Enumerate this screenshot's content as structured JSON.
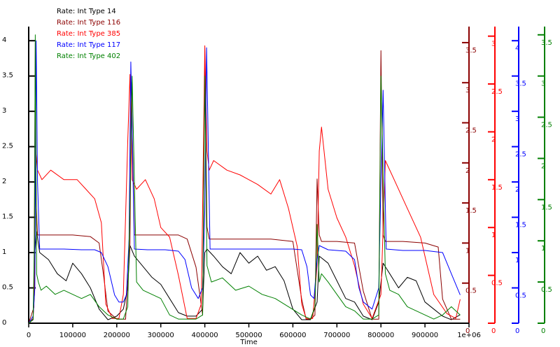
{
  "chart_data": {
    "type": "line",
    "xlabel": "Time",
    "x_ticks": [
      {
        "value": 0,
        "label": "0"
      },
      {
        "value": 100000,
        "label": "100000"
      },
      {
        "value": 200000,
        "label": "200000"
      },
      {
        "value": 300000,
        "label": "300000"
      },
      {
        "value": 400000,
        "label": "400000"
      },
      {
        "value": 500000,
        "label": "500000"
      },
      {
        "value": 600000,
        "label": "600000"
      },
      {
        "value": 700000,
        "label": "700000"
      },
      {
        "value": 800000,
        "label": "800000"
      },
      {
        "value": 900000,
        "label": "900000"
      },
      {
        "value": 1000000,
        "label": "1e+06"
      }
    ],
    "xlim": [
      0,
      1000000
    ],
    "legend_position": "top-left",
    "grid": false,
    "axes": [
      {
        "id": "a14",
        "side": "left",
        "color": "#000000",
        "ylim": [
          0,
          4.2
        ],
        "ticks": [
          {
            "v": 0,
            "l": "0"
          },
          {
            "v": 0.5,
            "l": "0.5"
          },
          {
            "v": 1,
            "l": "1"
          },
          {
            "v": 1.5,
            "l": "1.5"
          },
          {
            "v": 2,
            "l": "2"
          },
          {
            "v": 2.5,
            "l": "2.5"
          },
          {
            "v": 3,
            "l": "3"
          },
          {
            "v": 3.5,
            "l": "3.5"
          },
          {
            "v": 4,
            "l": "4"
          }
        ]
      },
      {
        "id": "a116",
        "side": "right",
        "color": "#8b0000",
        "ylim": [
          0,
          3.7
        ],
        "ticks": [
          {
            "v": 0,
            "l": "0"
          },
          {
            "v": 0.5,
            "l": "0.5"
          },
          {
            "v": 1,
            "l": "1"
          },
          {
            "v": 1.5,
            "l": "1.5"
          },
          {
            "v": 2,
            "l": "2"
          },
          {
            "v": 2.5,
            "l": "2.5"
          },
          {
            "v": 3,
            "l": "3"
          },
          {
            "v": 3.5,
            "l": "3.5"
          }
        ]
      },
      {
        "id": "a385",
        "side": "right",
        "color": "#ff0000",
        "ylim": [
          0,
          3.1
        ],
        "ticks": [
          {
            "v": 0,
            "l": "0"
          },
          {
            "v": 0.5,
            "l": "0.5"
          },
          {
            "v": 1,
            "l": "1"
          },
          {
            "v": 1.5,
            "l": "1.5"
          },
          {
            "v": 2,
            "l": "2"
          },
          {
            "v": 2.5,
            "l": "2.5"
          },
          {
            "v": 3,
            "l": "3"
          }
        ]
      },
      {
        "id": "a117",
        "side": "right",
        "color": "#0000ff",
        "ylim": [
          0,
          4.2
        ],
        "ticks": [
          {
            "v": 0,
            "l": "0"
          },
          {
            "v": 0.5,
            "l": "0.5"
          },
          {
            "v": 1,
            "l": "1"
          },
          {
            "v": 1.5,
            "l": "1.5"
          },
          {
            "v": 2,
            "l": "2"
          },
          {
            "v": 2.5,
            "l": "2.5"
          },
          {
            "v": 3,
            "l": "3"
          },
          {
            "v": 3.5,
            "l": "3.5"
          },
          {
            "v": 4,
            "l": "4"
          }
        ]
      },
      {
        "id": "a402",
        "side": "right",
        "color": "#008000",
        "ylim": [
          0,
          3.6
        ],
        "ticks": [
          {
            "v": 0,
            "l": "0"
          },
          {
            "v": 0.5,
            "l": "0.5"
          },
          {
            "v": 1,
            "l": "1"
          },
          {
            "v": 1.5,
            "l": "1.5"
          },
          {
            "v": 2,
            "l": "2"
          },
          {
            "v": 2.5,
            "l": "2.5"
          },
          {
            "v": 3,
            "l": "3"
          },
          {
            "v": 3.5,
            "l": "3.5"
          }
        ]
      }
    ],
    "series": [
      {
        "name": "Rate: Int Type 14",
        "color": "#000000",
        "axis": "a14",
        "x": [
          0,
          10000,
          14000,
          18000,
          25000,
          45000,
          65000,
          85000,
          100000,
          120000,
          140000,
          160000,
          180000,
          200000,
          215000,
          225000,
          230000,
          240000,
          260000,
          280000,
          300000,
          320000,
          340000,
          360000,
          380000,
          395000,
          400000,
          405000,
          420000,
          440000,
          460000,
          480000,
          500000,
          520000,
          540000,
          560000,
          580000,
          600000,
          620000,
          640000,
          655000,
          660000,
          680000,
          700000,
          720000,
          740000,
          760000,
          780000,
          795000,
          805000,
          820000,
          840000,
          860000,
          880000,
          900000,
          920000,
          940000,
          960000,
          980000
        ],
        "y": [
          0,
          0.05,
          1.0,
          1.3,
          1.0,
          0.9,
          0.7,
          0.6,
          0.85,
          0.7,
          0.5,
          0.2,
          0.05,
          0.1,
          0.2,
          0.5,
          1.1,
          0.95,
          0.8,
          0.65,
          0.55,
          0.35,
          0.15,
          0.1,
          0.1,
          0.2,
          1.0,
          1.05,
          0.95,
          0.8,
          0.7,
          1.0,
          0.85,
          0.95,
          0.75,
          0.8,
          0.6,
          0.2,
          0.05,
          0.05,
          0.3,
          0.95,
          0.85,
          0.6,
          0.35,
          0.3,
          0.1,
          0.05,
          0.3,
          0.85,
          0.7,
          0.5,
          0.65,
          0.6,
          0.3,
          0.2,
          0.1,
          0.05,
          0.12
        ]
      },
      {
        "name": "Rate: Int Type 116",
        "color": "#8b0000",
        "axis": "a116",
        "x": [
          0,
          12000,
          15000,
          17000,
          20000,
          30000,
          60000,
          100000,
          140000,
          160000,
          170000,
          180000,
          200000,
          220000,
          230000,
          233000,
          240000,
          260000,
          300000,
          340000,
          360000,
          380000,
          395000,
          400000,
          405000,
          410000,
          450000,
          500000,
          550000,
          600000,
          620000,
          630000,
          640000,
          650000,
          655000,
          660000,
          665000,
          700000,
          740000,
          760000,
          780000,
          795000,
          800000,
          805000,
          810000,
          850000,
          900000,
          930000,
          940000,
          960000,
          980000
        ],
        "y": [
          0,
          0.2,
          3.5,
          1.5,
          1.1,
          1.1,
          1.1,
          1.1,
          1.08,
          1.0,
          0.6,
          0.15,
          0.05,
          0.05,
          1.0,
          3.0,
          1.1,
          1.1,
          1.1,
          1.1,
          1.05,
          0.7,
          0.1,
          3.3,
          1.2,
          1.05,
          1.05,
          1.05,
          1.05,
          1.02,
          0.3,
          0.05,
          0.05,
          0.1,
          1.8,
          1.1,
          1.02,
          1.02,
          1.0,
          0.4,
          0.05,
          0.05,
          3.4,
          1.1,
          1.02,
          1.02,
          1.0,
          0.95,
          0.3,
          0.05,
          0.05
        ]
      },
      {
        "name": "Rate: Int Type 385",
        "color": "#ff0000",
        "axis": "a385",
        "x": [
          0,
          10000,
          13000,
          16000,
          20000,
          30000,
          50000,
          80000,
          110000,
          130000,
          150000,
          165000,
          175000,
          190000,
          205000,
          215000,
          225000,
          230000,
          235000,
          245000,
          265000,
          285000,
          300000,
          320000,
          340000,
          360000,
          380000,
          392000,
          400000,
          405000,
          410000,
          420000,
          450000,
          480000,
          520000,
          550000,
          570000,
          590000,
          610000,
          620000,
          630000,
          645000,
          655000,
          660000,
          665000,
          680000,
          700000,
          720000,
          740000,
          760000,
          780000,
          800000,
          810000,
          830000,
          860000,
          890000,
          920000,
          950000,
          970000,
          980000
        ],
        "y": [
          0,
          0.05,
          0.3,
          1.8,
          1.6,
          1.5,
          1.6,
          1.5,
          1.5,
          1.4,
          1.3,
          1.05,
          0.2,
          0.05,
          0.05,
          0.3,
          1.9,
          2.6,
          1.5,
          1.4,
          1.5,
          1.3,
          1.0,
          0.9,
          0.5,
          0.05,
          0.05,
          0.2,
          2.9,
          1.8,
          1.6,
          1.7,
          1.6,
          1.55,
          1.45,
          1.35,
          1.5,
          1.2,
          0.8,
          0.2,
          0.05,
          0.05,
          0.6,
          1.8,
          2.05,
          1.4,
          1.1,
          0.9,
          0.6,
          0.2,
          0.05,
          0.3,
          1.7,
          1.5,
          1.2,
          0.9,
          0.3,
          0.1,
          0.05,
          0.25
        ]
      },
      {
        "name": "Rate: Int Type 117",
        "color": "#0000ff",
        "axis": "a117",
        "x": [
          0,
          10000,
          14000,
          17000,
          20000,
          25000,
          40000,
          80000,
          120000,
          150000,
          165000,
          180000,
          195000,
          205000,
          215000,
          222000,
          228000,
          232000,
          240000,
          270000,
          310000,
          340000,
          355000,
          370000,
          385000,
          395000,
          400000,
          404000,
          412000,
          450000,
          500000,
          550000,
          600000,
          620000,
          632000,
          640000,
          648000,
          655000,
          660000,
          680000,
          700000,
          720000,
          740000,
          750000,
          760000,
          780000,
          795000,
          800000,
          805000,
          812000,
          850000,
          900000,
          940000,
          960000,
          980000
        ],
        "y": [
          0,
          0.1,
          0.5,
          4.0,
          2.0,
          1.05,
          1.05,
          1.05,
          1.04,
          1.04,
          1.0,
          0.8,
          0.4,
          0.3,
          0.3,
          0.4,
          1.2,
          3.7,
          1.05,
          1.04,
          1.04,
          1.02,
          0.9,
          0.5,
          0.35,
          0.5,
          1.6,
          3.9,
          1.05,
          1.05,
          1.05,
          1.05,
          1.05,
          1.04,
          0.8,
          0.4,
          0.35,
          0.9,
          1.1,
          1.04,
          1.03,
          1.02,
          0.9,
          0.5,
          0.3,
          0.2,
          0.5,
          2.0,
          3.3,
          1.05,
          1.03,
          1.03,
          1.0,
          0.7,
          0.4
        ]
      },
      {
        "name": "Rate: Int Type 402",
        "color": "#008000",
        "axis": "a402",
        "x": [
          0,
          10000,
          13000,
          15000,
          18000,
          22000,
          28000,
          40000,
          60000,
          80000,
          100000,
          120000,
          140000,
          160000,
          180000,
          200000,
          215000,
          225000,
          230000,
          235000,
          245000,
          260000,
          280000,
          300000,
          320000,
          340000,
          360000,
          380000,
          395000,
          400000,
          405000,
          415000,
          440000,
          470000,
          500000,
          530000,
          560000,
          590000,
          620000,
          640000,
          650000,
          655000,
          660000,
          665000,
          680000,
          700000,
          720000,
          740000,
          760000,
          780000,
          795000,
          800000,
          805000,
          810000,
          820000,
          840000,
          860000,
          880000,
          900000,
          920000,
          940000,
          960000,
          980000
        ],
        "y": [
          0,
          0.05,
          1.0,
          3.5,
          0.6,
          0.5,
          0.4,
          0.45,
          0.35,
          0.4,
          0.35,
          0.3,
          0.35,
          0.2,
          0.1,
          0.05,
          0.05,
          0.2,
          1.5,
          3.0,
          0.5,
          0.4,
          0.35,
          0.3,
          0.1,
          0.05,
          0.05,
          0.05,
          0.1,
          3.0,
          0.7,
          0.5,
          0.55,
          0.4,
          0.45,
          0.35,
          0.3,
          0.2,
          0.1,
          0.05,
          0.2,
          1.2,
          0.5,
          0.6,
          0.5,
          0.35,
          0.2,
          0.15,
          0.05,
          0.05,
          0.1,
          3.0,
          1.8,
          0.6,
          0.4,
          0.35,
          0.2,
          0.15,
          0.1,
          0.05,
          0.1,
          0.2,
          0.1
        ]
      }
    ]
  }
}
